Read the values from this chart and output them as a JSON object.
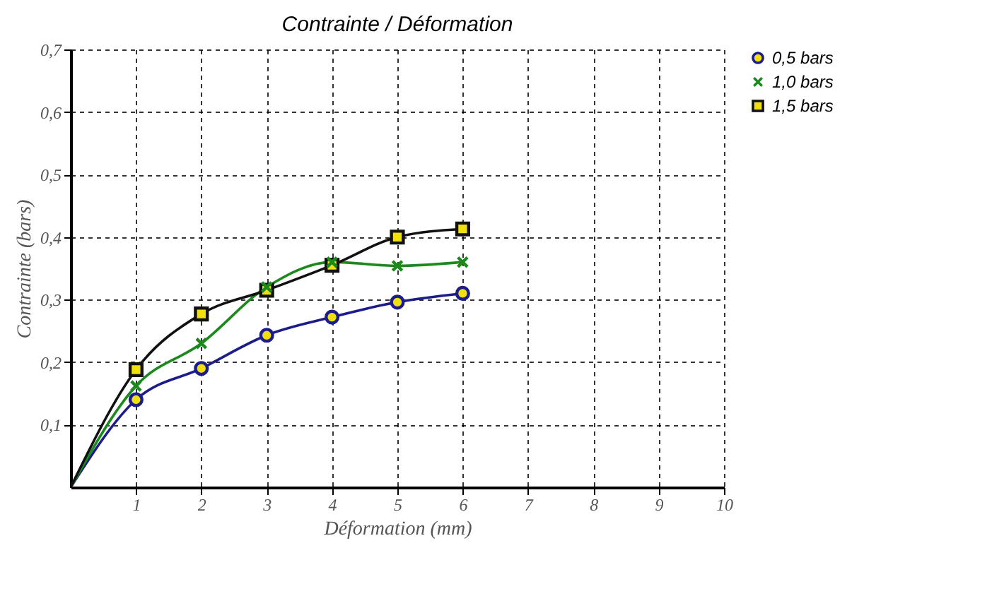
{
  "chart_data": {
    "type": "line",
    "title": "Contrainte / Déformation",
    "xlabel": "Déformation (mm)",
    "ylabel": "Contrainte (bars)",
    "x": [
      0,
      1,
      2,
      3,
      4,
      5,
      6
    ],
    "series": [
      {
        "name": "0,5 bars",
        "color": "#1c1c8c",
        "marker": "circle",
        "values": [
          0,
          0.14,
          0.19,
          0.243,
          0.272,
          0.296,
          0.31
        ]
      },
      {
        "name": "1,0 bars",
        "color": "#1a8a1a",
        "marker": "cross",
        "values": [
          0,
          0.162,
          0.23,
          0.32,
          0.36,
          0.354,
          0.36
        ]
      },
      {
        "name": "1,5 bars",
        "color": "#111111",
        "marker": "square",
        "values": [
          0,
          0.188,
          0.277,
          0.315,
          0.355,
          0.4,
          0.413
        ]
      }
    ],
    "xlim": [
      0,
      10
    ],
    "xticks": [
      1,
      2,
      3,
      4,
      5,
      6,
      7,
      8,
      9,
      10
    ],
    "ylim": [
      0,
      0.7
    ],
    "yticks": [
      {
        "value": 0.1,
        "label": "0,1"
      },
      {
        "value": 0.2,
        "label": "0,2"
      },
      {
        "value": 0.3,
        "label": "0,3"
      },
      {
        "value": 0.4,
        "label": "0,4"
      },
      {
        "value": 0.5,
        "label": "0,5"
      },
      {
        "value": 0.6,
        "label": "0,6"
      },
      {
        "value": 0.7,
        "label": "0,7"
      }
    ],
    "grid": true,
    "legend": "right",
    "line_style": "solid"
  }
}
